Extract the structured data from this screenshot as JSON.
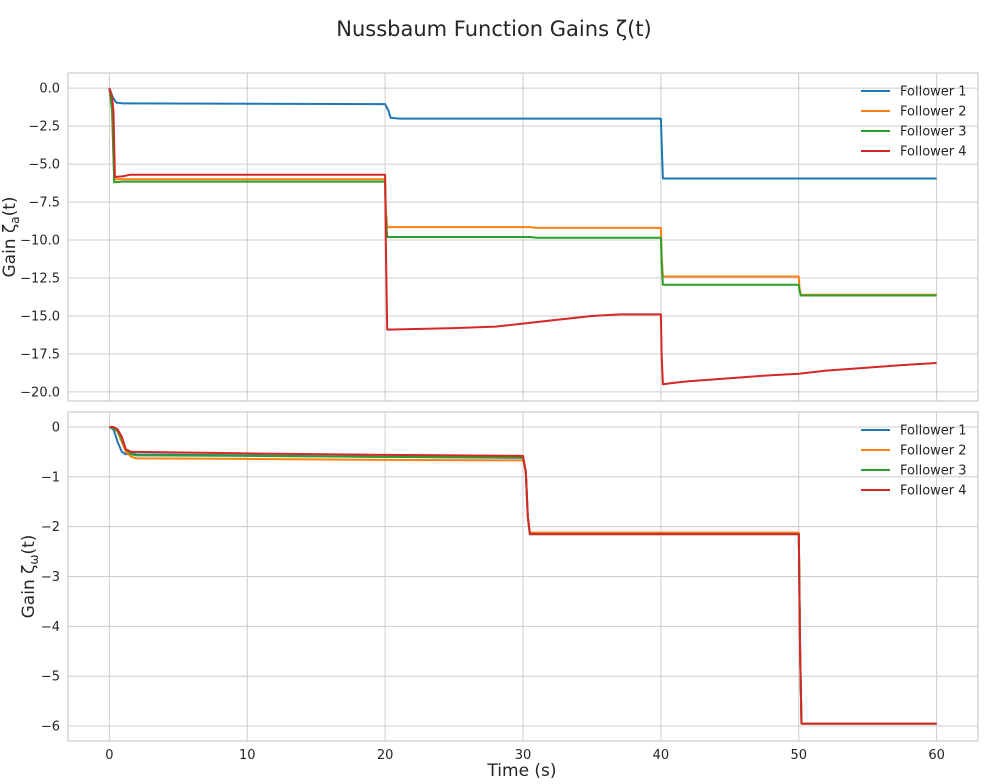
{
  "figure": {
    "title": "Nussbaum Function Gains ζ(t)",
    "xlabel": "Time (s)"
  },
  "chart_data": [
    {
      "type": "line",
      "ylabel": "Gain ζ_a(t)",
      "xlim": [
        -3,
        63
      ],
      "ylim": [
        -20.6,
        1.0
      ],
      "xticks": [
        0,
        10,
        20,
        30,
        40,
        50,
        60
      ],
      "xtick_labels": [
        "",
        "",
        "",
        "",
        "",
        "",
        ""
      ],
      "yticks": [
        0,
        -2.5,
        -5,
        -7.5,
        -10,
        -12.5,
        -15,
        -17.5,
        -20
      ],
      "ytick_labels": [
        "0.0",
        "−2.5",
        "−5.0",
        "−7.5",
        "−10.0",
        "−12.5",
        "−15.0",
        "−17.5",
        "−20.0"
      ],
      "grid": true,
      "legend": "top-right",
      "series": [
        {
          "name": "Follower 1",
          "color": "#1f77b4",
          "x": [
            0,
            0.25,
            0.5,
            1,
            20,
            20.25,
            20.4,
            21,
            40,
            40.05,
            40.15,
            60
          ],
          "y": [
            0,
            -0.6,
            -0.95,
            -1.0,
            -1.05,
            -1.5,
            -1.95,
            -2.0,
            -2.0,
            -3.5,
            -5.95,
            -5.95
          ]
        },
        {
          "name": "Follower 2",
          "color": "#ff7f0e",
          "x": [
            0,
            0.2,
            0.35,
            1,
            20,
            20.05,
            20.15,
            30.5,
            31,
            40,
            40.05,
            40.15,
            50,
            50.05,
            50.15,
            60
          ],
          "y": [
            0,
            -1.5,
            -6.0,
            -6.0,
            -6.0,
            -8.0,
            -9.15,
            -9.15,
            -9.2,
            -9.2,
            -11.0,
            -12.4,
            -12.4,
            -13.1,
            -13.6,
            -13.6
          ]
        },
        {
          "name": "Follower 3",
          "color": "#2ca02c",
          "x": [
            0,
            0.2,
            0.35,
            1,
            20,
            20.05,
            20.15,
            30.5,
            31,
            40,
            40.05,
            40.15,
            50,
            50.05,
            50.15,
            60
          ],
          "y": [
            0,
            -1.5,
            -6.2,
            -6.15,
            -6.15,
            -8.5,
            -9.8,
            -9.8,
            -9.85,
            -9.85,
            -11.5,
            -12.95,
            -12.95,
            -13.3,
            -13.65,
            -13.65
          ]
        },
        {
          "name": "Follower 4",
          "color": "#d62728",
          "x": [
            0,
            0.2,
            0.3,
            0.4,
            1,
            1.5,
            20,
            20.05,
            20.15,
            25,
            28,
            30,
            32,
            35,
            37,
            40,
            40.05,
            40.15,
            41,
            42,
            45,
            48,
            50,
            52,
            55,
            58,
            60
          ],
          "y": [
            0,
            -0.6,
            -1.6,
            -5.85,
            -5.8,
            -5.7,
            -5.7,
            -10.0,
            -15.9,
            -15.8,
            -15.7,
            -15.5,
            -15.3,
            -15.0,
            -14.9,
            -14.9,
            -17.5,
            -19.5,
            -19.4,
            -19.3,
            -19.1,
            -18.9,
            -18.8,
            -18.6,
            -18.4,
            -18.2,
            -18.1
          ]
        }
      ]
    },
    {
      "type": "line",
      "ylabel": "Gain ζ_ω(t)",
      "xlim": [
        -3,
        63
      ],
      "ylim": [
        -6.3,
        0.3
      ],
      "xticks": [
        0,
        10,
        20,
        30,
        40,
        50,
        60
      ],
      "xtick_labels": [
        "0",
        "10",
        "20",
        "30",
        "40",
        "50",
        "60"
      ],
      "yticks": [
        0,
        -1,
        -2,
        -3,
        -4,
        -5,
        -6
      ],
      "ytick_labels": [
        "0",
        "−1",
        "−2",
        "−3",
        "−4",
        "−5",
        "−6"
      ],
      "grid": true,
      "legend": "top-right",
      "series": [
        {
          "name": "Follower 1",
          "color": "#1f77b4",
          "x": [
            0,
            0.3,
            0.6,
            0.9,
            1.2,
            1.5,
            2,
            10,
            20,
            30,
            30.2,
            30.35,
            30.5,
            31,
            40,
            50,
            50.1,
            50.2,
            60
          ],
          "y": [
            0,
            -0.05,
            -0.3,
            -0.5,
            -0.55,
            -0.53,
            -0.55,
            -0.57,
            -0.6,
            -0.62,
            -0.9,
            -1.8,
            -2.15,
            -2.15,
            -2.15,
            -2.15,
            -4.5,
            -5.95,
            -5.95
          ]
        },
        {
          "name": "Follower 2",
          "color": "#ff7f0e",
          "x": [
            0,
            0.3,
            0.6,
            0.9,
            1.2,
            1.6,
            2,
            10,
            20,
            30,
            30.2,
            30.35,
            30.5,
            31,
            40,
            50,
            50.1,
            50.2,
            60
          ],
          "y": [
            0,
            -0.02,
            -0.1,
            -0.3,
            -0.5,
            -0.6,
            -0.63,
            -0.64,
            -0.66,
            -0.67,
            -0.9,
            -1.8,
            -2.12,
            -2.12,
            -2.12,
            -2.12,
            -4.5,
            -5.95,
            -5.95
          ]
        },
        {
          "name": "Follower 3",
          "color": "#2ca02c",
          "x": [
            0,
            0.3,
            0.6,
            0.9,
            1.2,
            1.6,
            2,
            10,
            20,
            30,
            30.2,
            30.35,
            30.5,
            31,
            40,
            50,
            50.1,
            50.2,
            60
          ],
          "y": [
            0,
            -0.02,
            -0.08,
            -0.25,
            -0.45,
            -0.55,
            -0.57,
            -0.58,
            -0.6,
            -0.61,
            -0.9,
            -1.8,
            -2.15,
            -2.15,
            -2.15,
            -2.15,
            -4.5,
            -5.95,
            -5.95
          ]
        },
        {
          "name": "Follower 4",
          "color": "#d62728",
          "x": [
            0,
            0.3,
            0.6,
            0.9,
            1.2,
            1.6,
            2,
            10,
            20,
            30,
            30.2,
            30.35,
            30.5,
            31,
            40,
            50,
            50.1,
            50.2,
            60
          ],
          "y": [
            0,
            0,
            -0.05,
            -0.2,
            -0.45,
            -0.5,
            -0.5,
            -0.53,
            -0.56,
            -0.58,
            -0.9,
            -1.8,
            -2.15,
            -2.15,
            -2.15,
            -2.15,
            -4.5,
            -5.95,
            -5.95
          ]
        }
      ]
    }
  ]
}
